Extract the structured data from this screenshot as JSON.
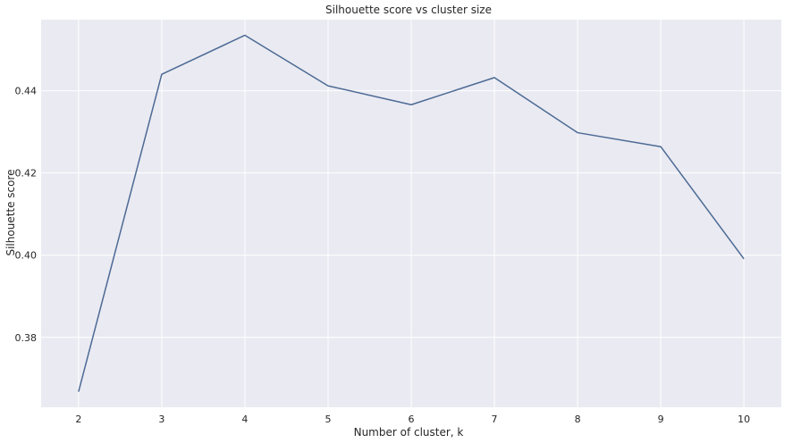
{
  "chart_data": {
    "type": "line",
    "title": "Silhouette score vs cluster size",
    "xlabel": "Number of cluster, k",
    "ylabel": "Silhouette score",
    "x": [
      2,
      3,
      4,
      5,
      6,
      7,
      8,
      9,
      10
    ],
    "series": [
      {
        "values": [
          0.3668,
          0.444,
          0.4535,
          0.4412,
          0.4366,
          0.4432,
          0.4298,
          0.4264,
          0.3991
        ]
      }
    ],
    "xticks": [
      "2",
      "3",
      "4",
      "5",
      "6",
      "7",
      "8",
      "9",
      "10"
    ],
    "yticks": [
      "0.38",
      "0.40",
      "0.42",
      "0.44"
    ],
    "xlim": [
      1.55,
      10.45
    ],
    "ylim": [
      0.363,
      0.4573
    ],
    "grid": true,
    "colors": {
      "background": "#eaeaf2",
      "grid": "#ffffff",
      "line": "#4c6a94"
    }
  }
}
